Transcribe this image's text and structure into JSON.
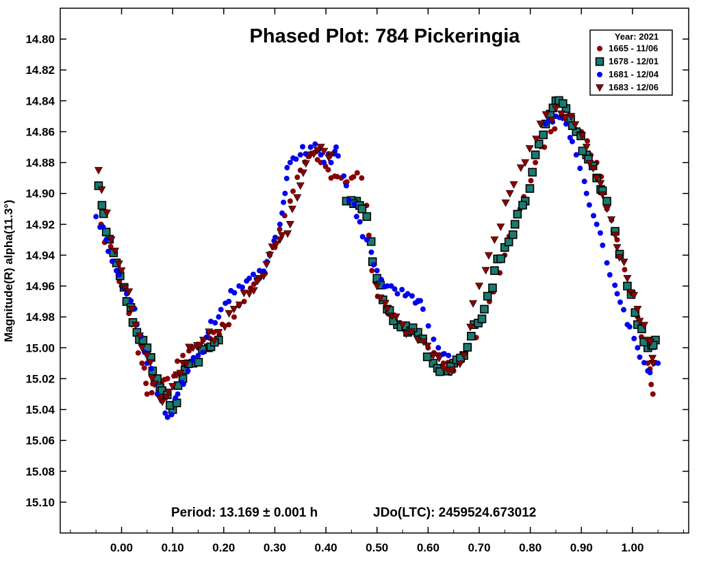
{
  "chart_data": {
    "type": "scatter",
    "title": "Phased Plot: 784 Pickeringia",
    "ylabel": "Magnitude(R) alpha(11.3°)",
    "xlabel": "",
    "footer_period": "Period: 13.169 ± 0.001 h",
    "footer_epoch": "JDo(LTC): 2459524.673012",
    "x_ticks": [
      "0.00",
      "0.10",
      "0.20",
      "0.30",
      "0.40",
      "0.50",
      "0.60",
      "0.70",
      "0.80",
      "0.90",
      "1.00"
    ],
    "y_ticks": [
      "14.80",
      "14.82",
      "14.84",
      "14.86",
      "14.88",
      "14.90",
      "14.92",
      "14.94",
      "14.96",
      "14.98",
      "15.00",
      "15.02",
      "15.04",
      "15.06",
      "15.08",
      "15.10"
    ],
    "xlim": [
      -0.12,
      1.11
    ],
    "ylim": [
      15.12,
      14.78
    ],
    "y_inverted": true,
    "legend_title": "Year: 2021",
    "legend_placement": "top-right",
    "series": [
      {
        "name": "1665 - 11/06",
        "marker": "circle",
        "color": "#8b0000",
        "anchors": [
          [
            -0.04,
            14.92
          ],
          [
            -0.01,
            14.945
          ],
          [
            0.0,
            14.96
          ],
          [
            0.02,
            14.985
          ],
          [
            0.04,
            15.01
          ],
          [
            0.05,
            15.03
          ],
          [
            0.07,
            15.02
          ],
          [
            0.09,
            15.02
          ],
          [
            0.12,
            15.005
          ],
          [
            0.15,
            15.0
          ],
          [
            0.18,
            14.99
          ],
          [
            0.21,
            14.985
          ],
          [
            0.24,
            14.97
          ],
          [
            0.27,
            14.955
          ],
          [
            0.3,
            14.935
          ],
          [
            0.33,
            14.905
          ],
          [
            0.35,
            14.885
          ],
          [
            0.37,
            14.87
          ],
          [
            0.39,
            14.88
          ],
          [
            0.41,
            14.89
          ],
          [
            0.43,
            14.89
          ],
          [
            0.45,
            14.89
          ],
          [
            0.47,
            14.89
          ],
          [
            0.49,
            14.95
          ],
          [
            0.51,
            14.97
          ],
          [
            0.54,
            14.985
          ],
          [
            0.57,
            14.99
          ],
          [
            0.6,
            15.0
          ],
          [
            0.63,
            15.01
          ],
          [
            0.65,
            15.015
          ],
          [
            0.68,
            15.0
          ],
          [
            0.72,
            14.97
          ],
          [
            0.75,
            14.94
          ],
          [
            0.78,
            14.91
          ],
          [
            0.81,
            14.88
          ],
          [
            0.84,
            14.86
          ],
          [
            0.87,
            14.85
          ],
          [
            0.9,
            14.86
          ],
          [
            0.93,
            14.88
          ],
          [
            0.95,
            14.91
          ],
          [
            0.97,
            14.93
          ],
          [
            0.99,
            14.96
          ],
          [
            1.01,
            14.98
          ],
          [
            1.03,
            15.01
          ],
          [
            1.04,
            15.03
          ]
        ],
        "jitter": 0.004
      },
      {
        "name": "1678 - 12/01",
        "marker": "square",
        "color": "#1a7a70",
        "anchors": [
          [
            -0.045,
            14.895
          ],
          [
            -0.03,
            14.925
          ],
          [
            -0.01,
            14.945
          ],
          [
            0.01,
            14.97
          ],
          [
            0.03,
            14.99
          ],
          [
            0.05,
            15.0
          ],
          [
            0.07,
            15.02
          ],
          [
            0.08,
            15.03
          ],
          [
            0.1,
            15.04
          ],
          [
            0.12,
            15.02
          ],
          [
            0.14,
            15.01
          ],
          [
            0.17,
            15.0
          ],
          [
            0.19,
            14.995
          ],
          [
            0.44,
            14.905
          ],
          [
            0.46,
            14.905
          ],
          [
            0.48,
            14.915
          ],
          [
            0.5,
            14.955
          ],
          [
            0.52,
            14.975
          ],
          [
            0.54,
            14.985
          ],
          [
            0.56,
            14.99
          ],
          [
            0.58,
            14.99
          ],
          [
            0.61,
            15.01
          ],
          [
            0.63,
            15.015
          ],
          [
            0.65,
            15.01
          ],
          [
            0.67,
            15.005
          ],
          [
            0.69,
            14.985
          ],
          [
            0.71,
            14.975
          ],
          [
            0.73,
            14.95
          ],
          [
            0.75,
            14.935
          ],
          [
            0.77,
            14.92
          ],
          [
            0.79,
            14.905
          ],
          [
            0.81,
            14.875
          ],
          [
            0.83,
            14.855
          ],
          [
            0.85,
            14.84
          ],
          [
            0.87,
            14.845
          ],
          [
            0.89,
            14.86
          ],
          [
            0.91,
            14.875
          ],
          [
            0.93,
            14.89
          ],
          [
            0.95,
            14.905
          ],
          [
            0.99,
            14.96
          ],
          [
            1.01,
            14.985
          ],
          [
            1.03,
            15.0
          ],
          [
            1.045,
            14.995
          ]
        ],
        "jitter": 0.003
      },
      {
        "name": "1681 - 12/04",
        "marker": "circle",
        "color": "#0000ee",
        "anchors": [
          [
            -0.05,
            14.915
          ],
          [
            -0.03,
            14.93
          ],
          [
            -0.01,
            14.95
          ],
          [
            0.01,
            14.965
          ],
          [
            0.03,
            14.985
          ],
          [
            0.05,
            15.01
          ],
          [
            0.07,
            15.03
          ],
          [
            0.09,
            15.045
          ],
          [
            0.11,
            15.03
          ],
          [
            0.13,
            15.015
          ],
          [
            0.15,
            15.005
          ],
          [
            0.17,
            14.99
          ],
          [
            0.19,
            14.98
          ],
          [
            0.21,
            14.97
          ],
          [
            0.23,
            14.96
          ],
          [
            0.25,
            14.955
          ],
          [
            0.27,
            14.95
          ],
          [
            0.29,
            14.94
          ],
          [
            0.31,
            14.92
          ],
          [
            0.32,
            14.9
          ],
          [
            0.33,
            14.88
          ],
          [
            0.35,
            14.875
          ],
          [
            0.37,
            14.87
          ],
          [
            0.39,
            14.875
          ],
          [
            0.41,
            14.88
          ],
          [
            0.42,
            14.87
          ],
          [
            0.44,
            14.895
          ],
          [
            0.46,
            14.915
          ],
          [
            0.48,
            14.93
          ],
          [
            0.5,
            14.95
          ],
          [
            0.52,
            14.96
          ],
          [
            0.54,
            14.965
          ],
          [
            0.56,
            14.965
          ],
          [
            0.58,
            14.97
          ],
          [
            0.59,
            14.975
          ],
          [
            0.62,
            15.0
          ],
          [
            0.64,
            15.005
          ],
          [
            0.83,
            14.855
          ],
          [
            0.85,
            14.85
          ],
          [
            0.87,
            14.855
          ],
          [
            0.89,
            14.875
          ],
          [
            0.91,
            14.9
          ],
          [
            0.93,
            14.92
          ],
          [
            0.95,
            14.945
          ],
          [
            0.97,
            14.965
          ],
          [
            0.99,
            14.985
          ],
          [
            1.01,
            15.0
          ],
          [
            1.03,
            15.015
          ],
          [
            1.05,
            15.01
          ]
        ],
        "jitter": 0.004
      },
      {
        "name": "1683 - 12/06",
        "marker": "triangle-down",
        "color": "#8b0000",
        "anchors": [
          [
            -0.045,
            14.885
          ],
          [
            -0.02,
            14.93
          ],
          [
            0.0,
            14.95
          ],
          [
            0.02,
            14.975
          ],
          [
            0.04,
            15.0
          ],
          [
            0.06,
            15.02
          ],
          [
            0.08,
            15.035
          ],
          [
            0.1,
            15.025
          ],
          [
            0.12,
            15.01
          ],
          [
            0.14,
            15.0
          ],
          [
            0.16,
            14.995
          ],
          [
            0.19,
            14.99
          ],
          [
            0.22,
            14.975
          ],
          [
            0.25,
            14.965
          ],
          [
            0.27,
            14.955
          ],
          [
            0.29,
            14.94
          ],
          [
            0.31,
            14.93
          ],
          [
            0.33,
            14.92
          ],
          [
            0.35,
            14.895
          ],
          [
            0.37,
            14.875
          ],
          [
            0.39,
            14.87
          ],
          [
            0.41,
            14.875
          ],
          [
            0.5,
            14.96
          ],
          [
            0.52,
            14.975
          ],
          [
            0.55,
            14.985
          ],
          [
            0.58,
            14.995
          ],
          [
            0.61,
            15.005
          ],
          [
            0.64,
            15.015
          ],
          [
            0.67,
            15.005
          ],
          [
            0.7,
            14.96
          ],
          [
            0.73,
            14.93
          ],
          [
            0.76,
            14.9
          ],
          [
            0.79,
            14.88
          ],
          [
            0.82,
            14.855
          ],
          [
            0.85,
            14.845
          ],
          [
            0.88,
            14.85
          ],
          [
            0.91,
            14.87
          ],
          [
            0.93,
            14.89
          ],
          [
            0.95,
            14.91
          ],
          [
            0.97,
            14.935
          ],
          [
            0.99,
            14.955
          ],
          [
            1.01,
            14.975
          ],
          [
            1.03,
            14.995
          ],
          [
            1.04,
            15.01
          ]
        ],
        "jitter": 0.004
      }
    ],
    "grid": false
  }
}
